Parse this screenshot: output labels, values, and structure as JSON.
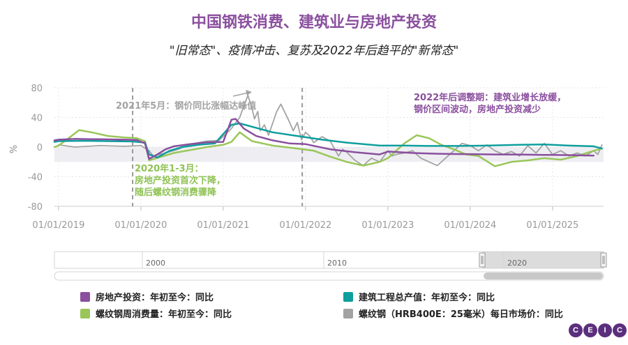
{
  "header": {
    "title": "中国钢铁消费、建筑业与房地产投资",
    "subtitle": "\"旧常态\"、疫情冲击、复苏及2022年后趋平的\"新常态\""
  },
  "chart_data": {
    "type": "line",
    "ylabel": "%",
    "ylim": [
      -80,
      80
    ],
    "yticks": [
      "80",
      "40",
      "0",
      "-40",
      "-80"
    ],
    "xticks": [
      "01/01/2019",
      "01/01/2020",
      "01/01/2021",
      "01/01/2022",
      "01/01/2023",
      "01/01/2024",
      "01/01/2025"
    ],
    "series": [
      {
        "name": "房地产投资：年初至今：同比",
        "color": "#8a4f9e",
        "width": 2.5,
        "x": [
          2018.95,
          2019.0,
          2019.2,
          2019.5,
          2019.8,
          2019.95,
          2020.05,
          2020.1,
          2020.2,
          2020.3,
          2020.4,
          2020.6,
          2020.8,
          2021.0,
          2021.1,
          2021.15,
          2021.25,
          2021.4,
          2021.6,
          2021.8,
          2022.0,
          2022.3,
          2022.6,
          2022.9,
          2023.0,
          2023.3,
          2023.6,
          2023.9,
          2024.0,
          2024.3,
          2024.6,
          2024.9,
          2025.0,
          2025.3,
          2025.5
        ],
        "values": [
          9,
          10,
          11,
          10.5,
          10,
          9.5,
          5,
          -16,
          -10,
          -3,
          1,
          4,
          6.5,
          7,
          37,
          38,
          25,
          15,
          9,
          5,
          4,
          -3,
          -7,
          -10,
          -6,
          -8,
          -9,
          -9.5,
          -9.5,
          -10,
          -10.2,
          -10.5,
          -10.5,
          -11,
          -11.5
        ]
      },
      {
        "name": "建筑工程总产值：年初至今：同比",
        "color": "#0e9e9e",
        "width": 2.5,
        "x": [
          2018.95,
          2019.0,
          2019.3,
          2019.6,
          2019.9,
          2020.05,
          2020.1,
          2020.2,
          2020.35,
          2020.5,
          2020.7,
          2020.9,
          2021.1,
          2021.2,
          2021.4,
          2021.6,
          2021.9,
          2022.2,
          2022.5,
          2022.9,
          2023.2,
          2023.5,
          2023.9,
          2024.2,
          2024.6,
          2024.9,
          2025.2,
          2025.5,
          2025.6
        ],
        "values": [
          7,
          8,
          8.5,
          8,
          7.5,
          6,
          -10,
          -14,
          -5,
          0,
          3,
          5,
          30,
          32,
          26,
          20,
          15,
          10,
          6,
          2,
          2,
          1.5,
          1.5,
          2,
          3,
          3.5,
          2,
          1,
          -2
        ]
      },
      {
        "name": "螺纹钢周消费量：年初至今：同比",
        "color": "#9ac65a",
        "width": 2.5,
        "x": [
          2018.95,
          2019.0,
          2019.1,
          2019.25,
          2019.4,
          2019.6,
          2019.8,
          2019.95,
          2020.05,
          2020.1,
          2020.25,
          2020.4,
          2020.6,
          2020.8,
          2021.0,
          2021.1,
          2021.2,
          2021.35,
          2021.6,
          2021.9,
          2022.1,
          2022.3,
          2022.5,
          2022.7,
          2022.9,
          2023.0,
          2023.1,
          2023.2,
          2023.35,
          2023.5,
          2023.65,
          2023.8,
          2023.95,
          2024.1,
          2024.3,
          2024.5,
          2024.7,
          2024.9,
          2025.1,
          2025.3,
          2025.5,
          2025.6
        ],
        "values": [
          0,
          2,
          10,
          23,
          20,
          15,
          13,
          12,
          8,
          -18,
          -13,
          -8,
          -4,
          0,
          3,
          7,
          20,
          8,
          2,
          -2,
          -5,
          -13,
          -20,
          -25,
          -20,
          -15,
          -5,
          5,
          16,
          12,
          3,
          -3,
          -10,
          -12,
          -26,
          -20,
          -18,
          -15,
          -17,
          -12,
          -5,
          -2
        ]
      },
      {
        "name": "螺纹钢（HRB400E：25毫米）每日市场价：同比",
        "color": "#a3a3a3",
        "width": 1.8,
        "x": [
          2019.0,
          2019.2,
          2019.5,
          2019.8,
          2020.0,
          2020.1,
          2020.15,
          2020.3,
          2020.45,
          2020.6,
          2020.8,
          2020.95,
          2021.1,
          2021.2,
          2021.25,
          2021.3,
          2021.35,
          2021.38,
          2021.42,
          2021.45,
          2021.5,
          2021.55,
          2021.6,
          2021.65,
          2021.7,
          2021.8,
          2021.85,
          2021.9,
          2021.95,
          2022.0,
          2022.05,
          2022.1,
          2022.15,
          2022.2,
          2022.3,
          2022.4,
          2022.45,
          2022.5,
          2022.6,
          2022.7,
          2022.8,
          2022.9,
          2023.0,
          2023.05,
          2023.1,
          2023.2,
          2023.3,
          2023.4,
          2023.5,
          2023.6,
          2023.7,
          2023.8,
          2023.9,
          2024.0,
          2024.1,
          2024.2,
          2024.3,
          2024.4,
          2024.5,
          2024.6,
          2024.7,
          2024.8,
          2024.9,
          2025.0,
          2025.1,
          2025.2,
          2025.3,
          2025.4,
          2025.5,
          2025.55,
          2025.6
        ],
        "values": [
          3,
          0,
          2,
          1,
          2,
          -5,
          -12,
          -8,
          -3,
          4,
          8,
          9,
          25,
          40,
          55,
          70,
          52,
          38,
          48,
          22,
          30,
          16,
          32,
          48,
          58,
          35,
          22,
          33,
          10,
          20,
          15,
          6,
          10,
          14,
          8,
          -12,
          -3,
          -7,
          -18,
          -25,
          -15,
          -20,
          -5,
          -12,
          -10,
          -8,
          -5,
          -15,
          -20,
          -25,
          -15,
          -5,
          5,
          2,
          -5,
          3,
          -5,
          -10,
          -6,
          -12,
          2,
          -8,
          5,
          -10,
          -5,
          -12,
          -8,
          -12,
          -5,
          -10,
          3
        ]
      }
    ],
    "annotations": [
      {
        "text": "2021年5月：钢价同比涨幅达峰值",
        "color": "#a3a3a3"
      },
      {
        "lines": [
          "2020年1-3月：",
          "房地产投资首次下降，",
          "随后螺纹钢消费骤降"
        ],
        "color": "#8fc255"
      },
      {
        "lines": [
          "2022年后调整期：建筑业增长放缓，",
          "钢价区间波动，房地产投资减少"
        ],
        "color": "#8a4f9e"
      }
    ],
    "navigator_labels": [
      "2000",
      "2010",
      "2020"
    ]
  },
  "legend": [
    {
      "label": "房地产投资：年初至今：同比",
      "color": "#8a4f9e"
    },
    {
      "label": "建筑工程总产值：年初至今：同比",
      "color": "#0e9e9e"
    },
    {
      "label": "螺纹钢周消费量：年初至今：同比",
      "color": "#9ac65a"
    },
    {
      "label": "螺纹钢（HRB400E：25毫米）每日市场价：同比",
      "color": "#a3a3a3"
    }
  ],
  "logo": {
    "letters": [
      "C",
      "E",
      "I",
      "C"
    ]
  }
}
